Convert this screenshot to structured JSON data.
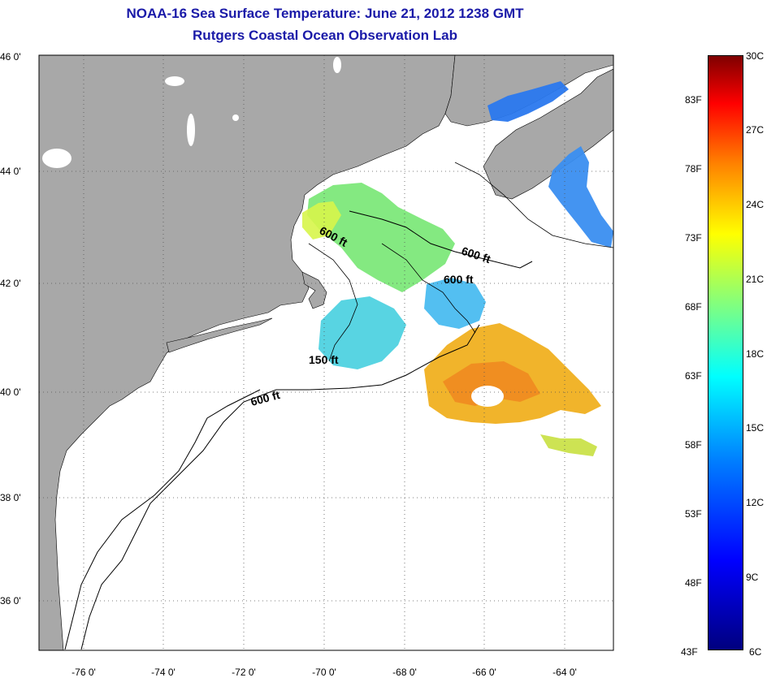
{
  "title": "NOAA-16 Sea Surface Temperature:  June 21, 2012 1238 GMT",
  "subtitle": "Rutgers Coastal Ocean Observation Lab",
  "lat_labels": [
    "46 0'",
    "44 0'",
    "42 0'",
    "40 0'",
    "38 0'",
    "36 0'"
  ],
  "lon_labels": [
    "-76 0'",
    "-74 0'",
    "-72 0'",
    "-70 0'",
    "-68 0'",
    "-66 0'",
    "-64 0'"
  ],
  "contour_labels": [
    "600 ft",
    "600 ft",
    "600 ft",
    "150 ft",
    "600 ft"
  ],
  "colorbar": {
    "fahrenheit": [
      "83F",
      "78F",
      "73F",
      "68F",
      "63F",
      "58F",
      "53F",
      "48F",
      "43F"
    ],
    "celsius": [
      "30C",
      "27C",
      "24C",
      "21C",
      "18C",
      "15C",
      "12C",
      "9C",
      "6C"
    ]
  },
  "colors": {
    "land": "#a8a8a8",
    "ocean": "#ffffff",
    "title": "#1a1aa8"
  }
}
